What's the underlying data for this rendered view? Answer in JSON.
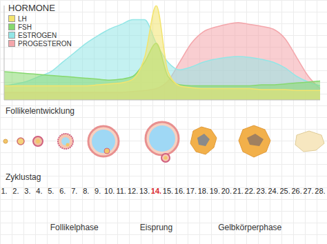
{
  "chart_data": {
    "type": "area",
    "title": "HORMONE",
    "xlabel": "Zyklustag",
    "section_label": "Follikelentwicklung",
    "categories": [
      "1.",
      "2.",
      "3.",
      "4.",
      "5.",
      "6.",
      "7.",
      "8.",
      "9.",
      "10.",
      "11.",
      "12.",
      "13.",
      "14.",
      "15.",
      "16.",
      "17.",
      "18.",
      "19.",
      "20.",
      "21.",
      "22.",
      "23.",
      "24.",
      "25.",
      "26.",
      "27.",
      "28."
    ],
    "series": [
      {
        "name": "LH",
        "color": "#f3e46e",
        "values": [
          15,
          15,
          15,
          15,
          15,
          15,
          15,
          15,
          16,
          17,
          18,
          22,
          45,
          100,
          30,
          15,
          13,
          12,
          12,
          12,
          12,
          12,
          11,
          11,
          11,
          10,
          10,
          10
        ]
      },
      {
        "name": "FSH",
        "color": "#86d86e",
        "values": [
          30,
          29,
          28,
          27,
          26,
          25,
          24,
          23,
          22,
          21,
          22,
          25,
          40,
          60,
          25,
          16,
          15,
          15,
          15,
          15,
          15,
          15,
          16,
          16,
          17,
          18,
          19,
          20
        ]
      },
      {
        "name": "ESTROGEN",
        "color": "#93e6e6",
        "values": [
          15,
          17,
          20,
          25,
          30,
          40,
          50,
          60,
          68,
          75,
          80,
          85,
          85,
          60,
          40,
          32,
          35,
          40,
          43,
          45,
          46,
          45,
          43,
          40,
          34,
          25,
          19,
          15
        ]
      },
      {
        "name": "PROGESTERON",
        "color": "#f4a6ab",
        "values": [
          8,
          8,
          8,
          8,
          8,
          8,
          8,
          8,
          8,
          8,
          8,
          9,
          10,
          12,
          20,
          40,
          60,
          72,
          77,
          80,
          82,
          80,
          78,
          75,
          65,
          45,
          25,
          12
        ]
      }
    ],
    "ylim": [
      0,
      100
    ],
    "tick_labels": "x",
    "grid": true,
    "legend": "top-left",
    "annotations": [
      {
        "text": "Follikelphase",
        "x": "7."
      },
      {
        "text": "Eisprung",
        "x": "14.",
        "color": "#d9262c"
      },
      {
        "text": "Gelbkörperphase",
        "x": "22."
      }
    ]
  }
}
